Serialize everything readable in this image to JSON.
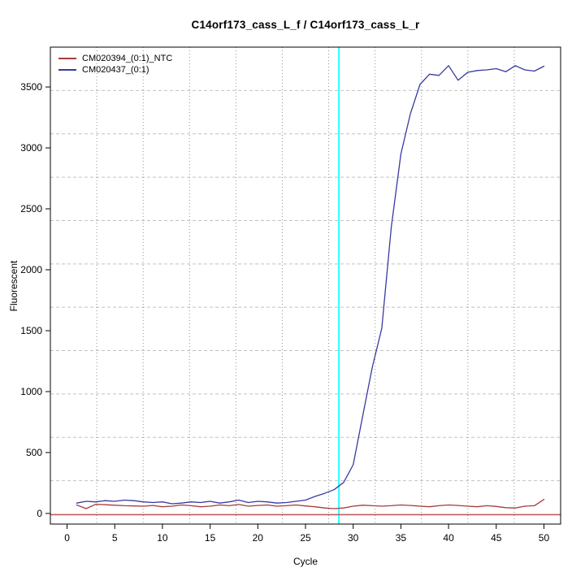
{
  "chart_data": {
    "type": "line",
    "title": "C14orf173_cass_L_f / C14orf173_cass_L_r",
    "xlabel": "Cycle",
    "ylabel": "Fluorescent",
    "x_ticks": [
      0,
      5,
      10,
      15,
      20,
      25,
      30,
      35,
      40,
      45,
      50
    ],
    "y_ticks": [
      0,
      500,
      1000,
      1500,
      2000,
      2500,
      3000,
      3500
    ],
    "xlim": [
      -1.75,
      51.75
    ],
    "ylim": [
      -87,
      3827
    ],
    "grid": {
      "shown": true,
      "cells_x": 11,
      "cells_y": 11,
      "v_color": "#8f8f8f",
      "h_color": "#c2c2c2"
    },
    "ct_line": {
      "cycle": 28.5,
      "color": "#00ffff"
    },
    "zero_line": {
      "value": 0,
      "color": "#c15b5b"
    },
    "legend": {
      "position": "top-left",
      "entries": [
        {
          "label": "CM020394_(0:1)_NTC",
          "color": "#a63c3c"
        },
        {
          "label": "CM020437_(0:1)",
          "color": "#3939a3"
        }
      ]
    },
    "x": [
      1,
      2,
      3,
      4,
      5,
      6,
      7,
      8,
      9,
      10,
      11,
      12,
      13,
      14,
      15,
      16,
      17,
      18,
      19,
      20,
      21,
      22,
      23,
      24,
      25,
      26,
      27,
      28,
      29,
      30,
      31,
      32,
      33,
      34,
      35,
      36,
      37,
      38,
      39,
      40,
      41,
      42,
      43,
      44,
      45,
      46,
      47,
      48,
      49,
      50
    ],
    "series": [
      {
        "name": "CM020394_(0:1)_NTC",
        "color": "#a63c3c",
        "values": [
          70,
          40,
          75,
          72,
          68,
          64,
          62,
          60,
          66,
          55,
          60,
          70,
          64,
          55,
          60,
          70,
          64,
          74,
          60,
          66,
          70,
          60,
          64,
          70,
          62,
          55,
          45,
          40,
          45,
          60,
          68,
          64,
          60,
          64,
          70,
          66,
          60,
          55,
          64,
          70,
          66,
          60,
          55,
          64,
          58,
          48,
          45,
          60,
          64,
          115
        ]
      },
      {
        "name": "CM020437_(0:1)",
        "color": "#3939a3",
        "values": [
          85,
          100,
          95,
          105,
          100,
          110,
          105,
          95,
          90,
          95,
          80,
          85,
          95,
          90,
          100,
          85,
          95,
          110,
          90,
          100,
          95,
          85,
          90,
          100,
          110,
          140,
          165,
          195,
          255,
          400,
          800,
          1200,
          1520,
          2350,
          2950,
          3280,
          3520,
          3605,
          3595,
          3675,
          3555,
          3620,
          3635,
          3640,
          3650,
          3625,
          3675,
          3640,
          3630,
          3670
        ]
      }
    ]
  }
}
